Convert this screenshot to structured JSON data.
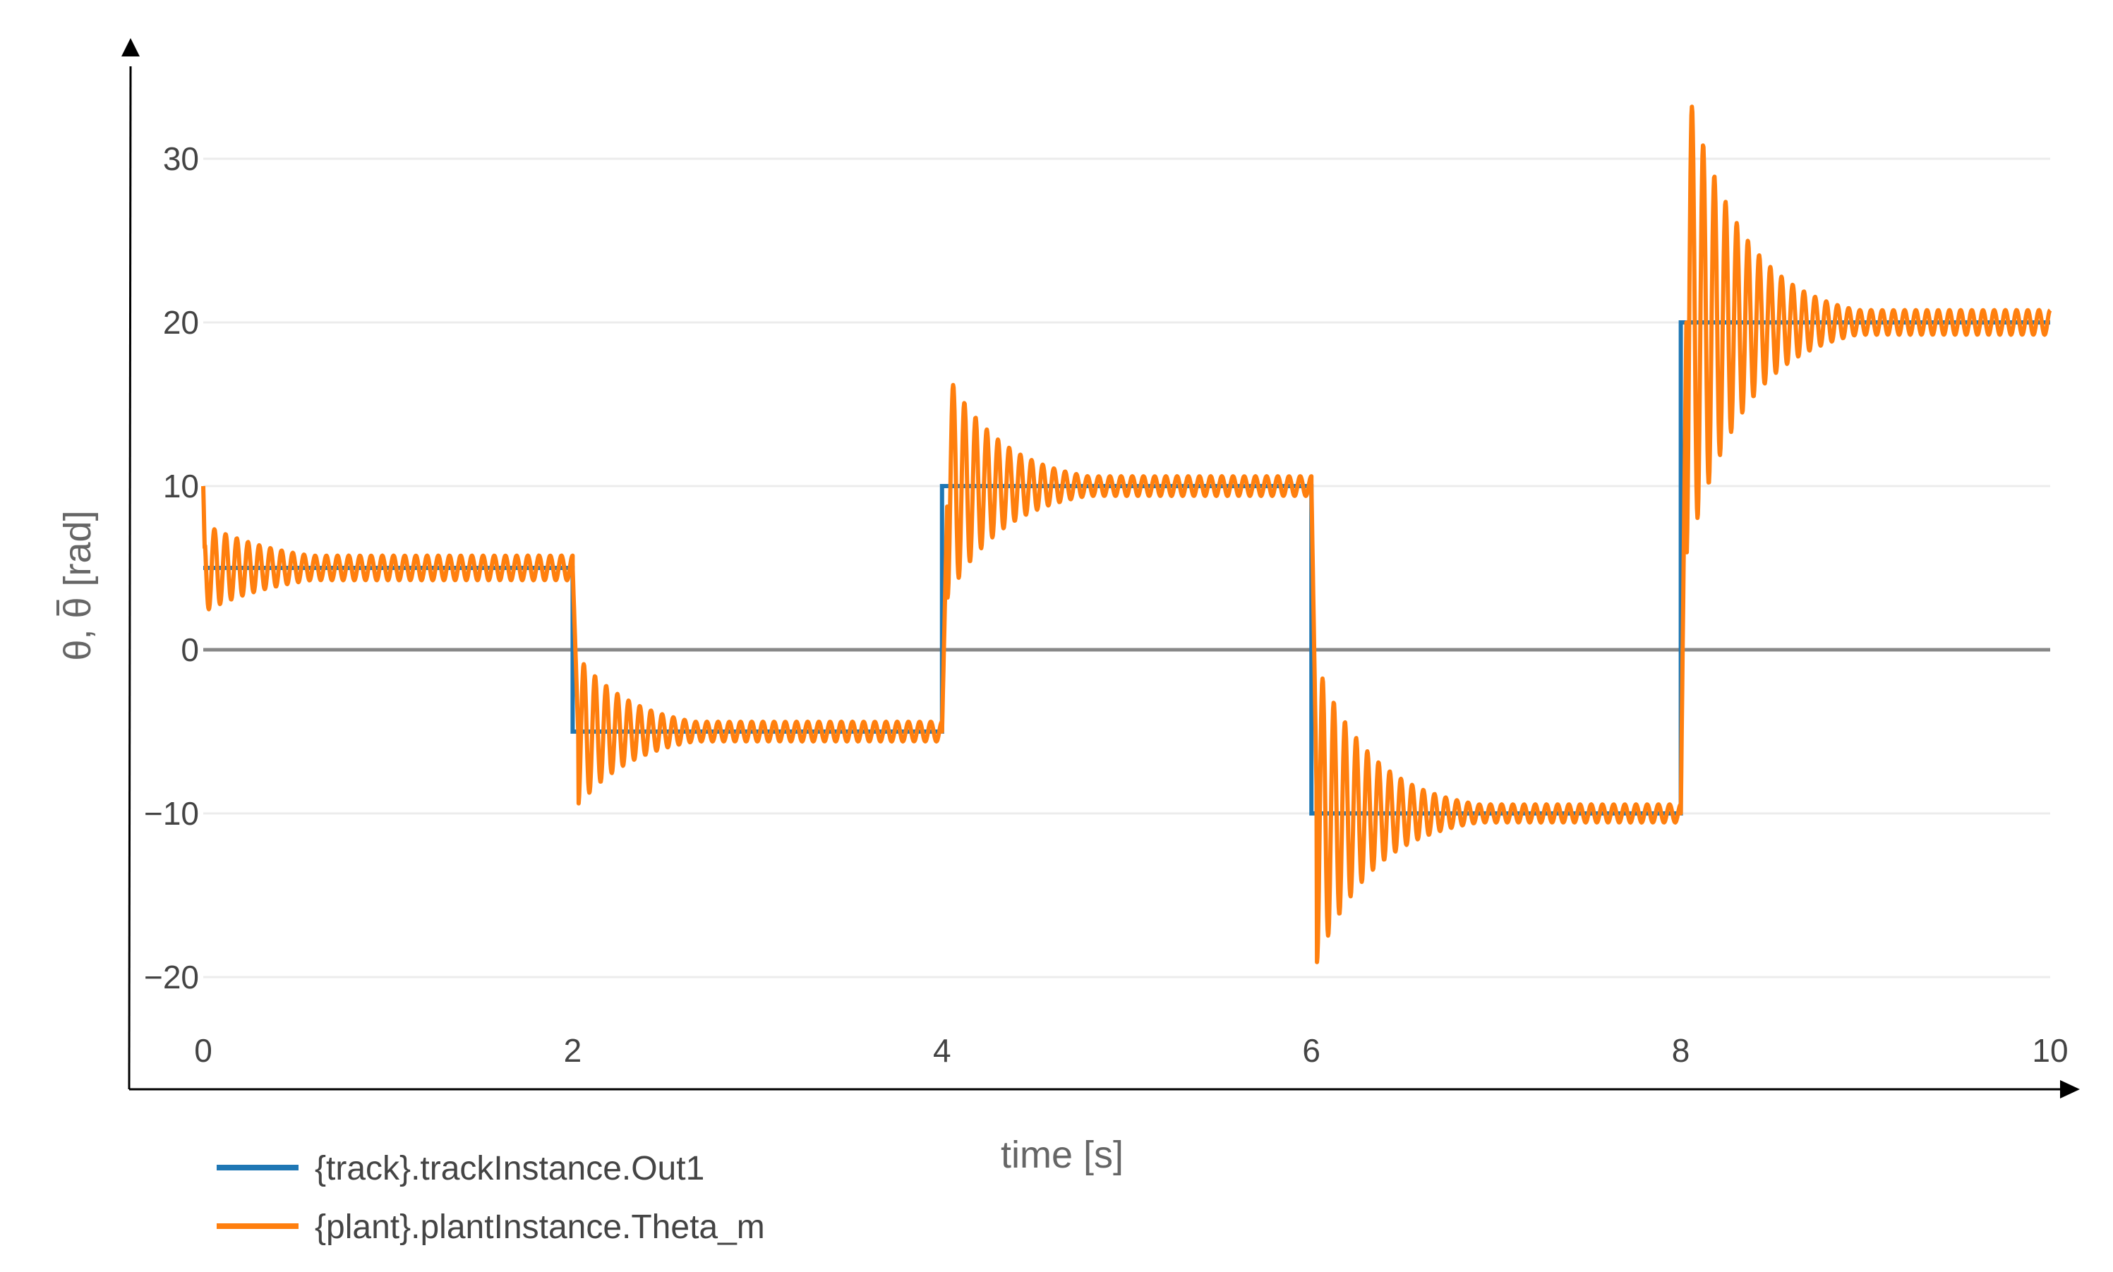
{
  "chart_data": {
    "type": "line",
    "xlabel": "time [s]",
    "ylabel_main": "θ, ",
    "ylabel_bar_symbol": "θ",
    "ylabel_unit": " [rad]",
    "xlim": [
      0,
      10
    ],
    "ylim": [
      -25.5,
      39
    ],
    "x_ticks": [
      0,
      2,
      4,
      6,
      8,
      10
    ],
    "x_tick_labels": [
      "0",
      "2",
      "4",
      "6",
      "8",
      "10"
    ],
    "y_ticks": [
      -20,
      -10,
      0,
      10,
      20,
      30
    ],
    "y_tick_labels": [
      "−20",
      "−10",
      "0",
      "10",
      "20",
      "30"
    ],
    "grid": true,
    "legend_position": "bottom-left",
    "series": [
      {
        "name": "{track}.trackInstance.Out1",
        "color": "#1f77b4",
        "kind": "step",
        "x": [
          0,
          2,
          2,
          4,
          4,
          6,
          6,
          8,
          8,
          10
        ],
        "y": [
          5,
          5,
          -5,
          -5,
          10,
          10,
          -10,
          -10,
          20,
          20
        ]
      },
      {
        "name": "{plant}.plantInstance.Theta_m",
        "color": "#ff7f0e",
        "kind": "oscillating-step-response",
        "initial_value": 10,
        "segments": [
          {
            "t_start": 0,
            "t_end": 2,
            "target": 5,
            "overshoot_amplitude": 2.7,
            "decay_rate": 2.2,
            "residual_amplitude": 0.75
          },
          {
            "t_start": 2,
            "t_end": 4,
            "target": -5,
            "overshoot_amplitude": 5.0,
            "decay_rate": 3.2,
            "residual_amplitude": 0.6
          },
          {
            "t_start": 4,
            "t_end": 6,
            "target": 10,
            "overshoot_amplitude": 7.5,
            "decay_rate": 3.2,
            "residual_amplitude": 0.6
          },
          {
            "t_start": 6,
            "t_end": 8,
            "target": -10,
            "overshoot_amplitude": 10.0,
            "decay_rate": 3.2,
            "residual_amplitude": 0.55
          },
          {
            "t_start": 8,
            "t_end": 10,
            "target": 20,
            "overshoot_amplitude": 16.0,
            "decay_rate": 3.2,
            "residual_amplitude": 0.75
          }
        ],
        "oscillation_frequency_hz": 16.5
      }
    ]
  },
  "colors": {
    "axis": "#000000",
    "grid": "#ececec",
    "zero_line": "#888888",
    "tick_text": "#444444",
    "axis_title": "#666666"
  }
}
